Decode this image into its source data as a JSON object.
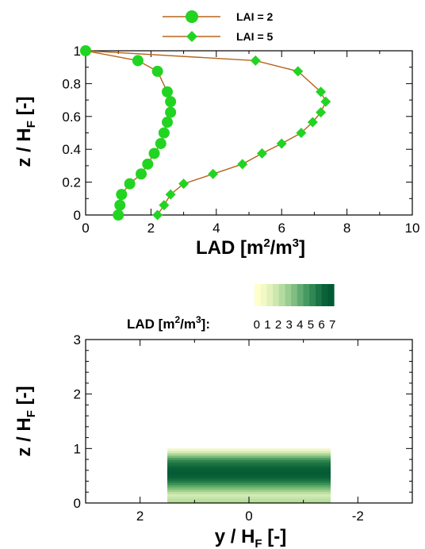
{
  "chart_data": [
    {
      "type": "line",
      "xlabel": {
        "main": "LAD [m",
        "sup1": "2",
        "mid": "/m",
        "sup2": "3",
        "end": "]"
      },
      "ylabel": {
        "main": "z / H",
        "sub": "F",
        "end": " [-]"
      },
      "xlim": [
        0,
        10
      ],
      "ylim": [
        0,
        1
      ],
      "x_ticks": [
        "0",
        "2",
        "4",
        "6",
        "8",
        "10"
      ],
      "y_ticks": [
        "0",
        "0.2",
        "0.4",
        "0.6",
        "0.8",
        "1"
      ],
      "line_color": "#b5651d",
      "marker_color": "#22d422",
      "legend_position": "top",
      "series": [
        {
          "name": "LAI = 2",
          "marker": "circle",
          "points": [
            [
              1.0,
              0.0
            ],
            [
              1.05,
              0.06
            ],
            [
              1.1,
              0.125
            ],
            [
              1.35,
              0.19
            ],
            [
              1.7,
              0.25
            ],
            [
              1.9,
              0.31
            ],
            [
              2.1,
              0.375
            ],
            [
              2.3,
              0.435
            ],
            [
              2.4,
              0.5
            ],
            [
              2.5,
              0.565
            ],
            [
              2.6,
              0.625
            ],
            [
              2.6,
              0.69
            ],
            [
              2.5,
              0.75
            ],
            [
              2.2,
              0.875
            ],
            [
              1.6,
              0.94
            ],
            [
              0.0,
              1.0
            ]
          ]
        },
        {
          "name": "LAI = 5",
          "marker": "diamond",
          "points": [
            [
              2.2,
              0.0
            ],
            [
              2.4,
              0.06
            ],
            [
              2.6,
              0.125
            ],
            [
              3.0,
              0.19
            ],
            [
              3.9,
              0.25
            ],
            [
              4.8,
              0.31
            ],
            [
              5.4,
              0.375
            ],
            [
              6.0,
              0.435
            ],
            [
              6.6,
              0.5
            ],
            [
              6.95,
              0.565
            ],
            [
              7.2,
              0.625
            ],
            [
              7.35,
              0.69
            ],
            [
              7.2,
              0.75
            ],
            [
              6.5,
              0.875
            ],
            [
              5.2,
              0.94
            ],
            [
              0.0,
              1.0
            ]
          ]
        }
      ]
    },
    {
      "type": "heatmap",
      "xlabel": {
        "main": "y / H",
        "sub": "F",
        "end": " [-]"
      },
      "ylabel": {
        "main": "z / H",
        "sub": "F",
        "end": " [-]"
      },
      "xlim": [
        3,
        -3
      ],
      "ylim": [
        0,
        3
      ],
      "x_ticks": [
        "2",
        "0",
        "-2"
      ],
      "y_ticks": [
        "0",
        "1",
        "2",
        "3"
      ],
      "canopy": {
        "y_extent": [
          -1.5,
          1.5
        ],
        "z_extent": [
          0,
          1
        ]
      },
      "colorbar": {
        "title": {
          "main": "LAD [m",
          "sup1": "2",
          "mid": "/m",
          "sup2": "3",
          "end": "]:"
        },
        "labels": [
          "0",
          "1",
          "2",
          "3",
          "4",
          "5",
          "6",
          "7"
        ],
        "colors": [
          "#ffffcc",
          "#f3f9c4",
          "#e2f1bb",
          "#cde8ae",
          "#b4dca0",
          "#9acd92",
          "#7fbd82",
          "#62ab72",
          "#479962",
          "#2f8753",
          "#1b7445",
          "#0b6239",
          "#005a32"
        ]
      },
      "lad_profile_colors": [
        "#b6dd97",
        "#bce0a0",
        "#c6e6ac",
        "#d2ebb6",
        "#c0e1a4",
        "#9ecf8c",
        "#7ebd7a",
        "#5ea868",
        "#3e9256",
        "#257e48",
        "#136d3f",
        "#0b6239",
        "#075d36",
        "#065b35",
        "#075d36",
        "#0b6239",
        "#136b3e",
        "#1d7543",
        "#2d834d",
        "#4a9a5e",
        "#79bb79",
        "#a8d597",
        "#d3eab5",
        "#f0f6c8"
      ]
    }
  ]
}
